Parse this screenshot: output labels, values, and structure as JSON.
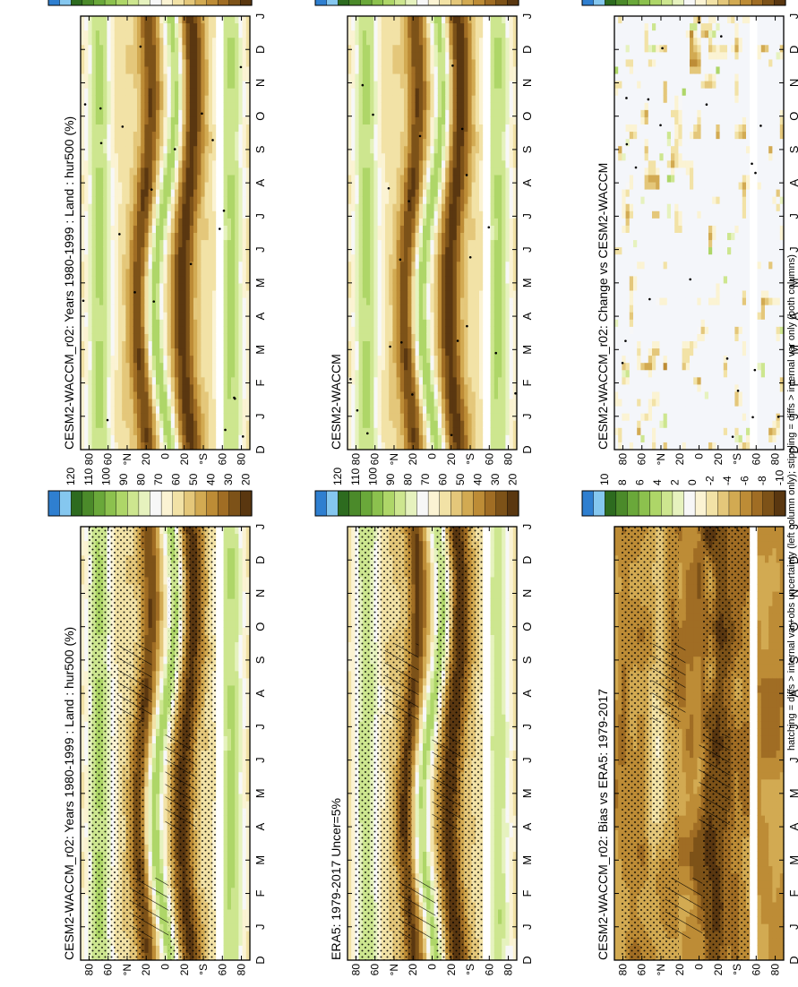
{
  "figure": {
    "orientation": "rotated 90 degrees counter-clockwise (page in landscape)",
    "footnote": "hatching = diffs > internal var+obs uncertainty (left column only); stippling = diffs > internal var only (both columns)"
  },
  "palette": {
    "abs_wet_to_dry": [
      "#2f7fd0",
      "#85c7ef",
      "#2d6b1f",
      "#4b8a2a",
      "#6aa83a",
      "#8cc14e",
      "#aed668",
      "#cde68f",
      "#e6f2be",
      "#f7f7f7",
      "#fbf3d3",
      "#f2e2a6",
      "#e4c77a",
      "#d2aa52",
      "#bd8c36",
      "#a06d24",
      "#7d5218",
      "#5a3710"
    ],
    "diff_wet_to_dry": [
      "#2f7fd0",
      "#85c7ef",
      "#2d6b1f",
      "#4b8a2a",
      "#6aa83a",
      "#8cc14e",
      "#aed668",
      "#cde68f",
      "#e6f2be",
      "#f7f7f7",
      "#fbf3d3",
      "#f2e2a6",
      "#e4c77a",
      "#d2aa52",
      "#bd8c36",
      "#a06d24",
      "#7d5218",
      "#5a3710"
    ],
    "ocean_white": "#ffffff",
    "neutral": "#f4f6fa"
  },
  "chart_data": [
    {
      "panel": "top-left",
      "type": "heatmap",
      "title": "CESM2-WACCM_r02: Years 1980-1999 : Land : hur500 (%)",
      "x_ticks": [
        "D",
        "J",
        "F",
        "M",
        "A",
        "M",
        "J",
        "J",
        "A",
        "S",
        "O",
        "N",
        "D",
        "J"
      ],
      "y_ticks": [
        "80",
        "60",
        "°N",
        "20",
        "0",
        "20",
        "°S",
        "60",
        "80"
      ],
      "colorbar_labels": [
        "120",
        "110",
        "100",
        "90",
        "80",
        "70",
        "60",
        "50",
        "40",
        "30",
        "20"
      ],
      "colorbar": "abs",
      "field": "abs",
      "hatching": true,
      "stippling": "dense"
    },
    {
      "panel": "top-right",
      "type": "heatmap",
      "title": "CESM2-WACCM_r02: Years 1980-1999 : Land : hur500 (%)",
      "x_ticks": [
        "D",
        "J",
        "F",
        "M",
        "A",
        "M",
        "J",
        "J",
        "A",
        "S",
        "O",
        "N",
        "D",
        "J"
      ],
      "y_ticks": [
        "80",
        "60",
        "°N",
        "20",
        "0",
        "20",
        "°S",
        "60",
        "80"
      ],
      "colorbar_labels": [
        "120",
        "110",
        "100",
        "90",
        "80",
        "70",
        "60",
        "50",
        "40",
        "30",
        "20"
      ],
      "colorbar": "abs",
      "field": "abs",
      "hatching": false,
      "stippling": "sparse"
    },
    {
      "panel": "middle-left",
      "type": "heatmap",
      "title": "ERA5: 1979-2017 Uncer=5%",
      "x_ticks": [
        "D",
        "J",
        "F",
        "M",
        "A",
        "M",
        "J",
        "J",
        "A",
        "S",
        "O",
        "N",
        "D",
        "J"
      ],
      "y_ticks": [
        "80",
        "60",
        "°N",
        "20",
        "0",
        "20",
        "°S",
        "60",
        "80"
      ],
      "colorbar_labels": [
        "120",
        "110",
        "100",
        "90",
        "80",
        "70",
        "60",
        "50",
        "40",
        "30",
        "20"
      ],
      "colorbar": "abs",
      "field": "abs_obs",
      "hatching": true,
      "stippling": "dense"
    },
    {
      "panel": "middle-right",
      "type": "heatmap",
      "title": "CESM2-WACCM",
      "x_ticks": [
        "D",
        "J",
        "F",
        "M",
        "A",
        "M",
        "J",
        "J",
        "A",
        "S",
        "O",
        "N",
        "D",
        "J"
      ],
      "y_ticks": [
        "80",
        "60",
        "°N",
        "20",
        "0",
        "20",
        "°S",
        "60",
        "80"
      ],
      "colorbar_labels": [
        "120",
        "110",
        "100",
        "90",
        "80",
        "70",
        "60",
        "50",
        "40",
        "30",
        "20"
      ],
      "colorbar": "abs",
      "field": "abs",
      "hatching": false,
      "stippling": "sparse"
    },
    {
      "panel": "bottom-left",
      "type": "heatmap",
      "title": "CESM2-WACCM_r02: Bias vs ERA5: 1979-2017",
      "x_ticks": [
        "D",
        "J",
        "F",
        "M",
        "A",
        "M",
        "J",
        "J",
        "A",
        "S",
        "O",
        "N",
        "D",
        "J"
      ],
      "y_ticks": [
        "80",
        "60",
        "°N",
        "20",
        "0",
        "20",
        "°S",
        "60",
        "80"
      ],
      "colorbar_labels": [
        "10",
        "8",
        "6",
        "4",
        "2",
        "0",
        "-2",
        "-4",
        "-6",
        "-8",
        "-10"
      ],
      "colorbar": "diff",
      "field": "bias",
      "hatching": true,
      "stippling": "dense"
    },
    {
      "panel": "bottom-right",
      "type": "heatmap",
      "title": "CESM2-WACCM_r02: Change vs CESM2-WACCM",
      "x_ticks": [
        "D",
        "J",
        "F",
        "M",
        "A",
        "M",
        "J",
        "J",
        "A",
        "S",
        "O",
        "N",
        "D",
        "J"
      ],
      "y_ticks": [
        "80",
        "60",
        "°N",
        "20",
        "0",
        "20",
        "°S",
        "60",
        "80"
      ],
      "colorbar_labels": [
        "10",
        "8",
        "6",
        "4",
        "2",
        "0",
        "-2",
        "-4",
        "-6",
        "-8",
        "-10"
      ],
      "colorbar": "diff",
      "field": "change",
      "hatching": false,
      "stippling": "sparse"
    }
  ]
}
